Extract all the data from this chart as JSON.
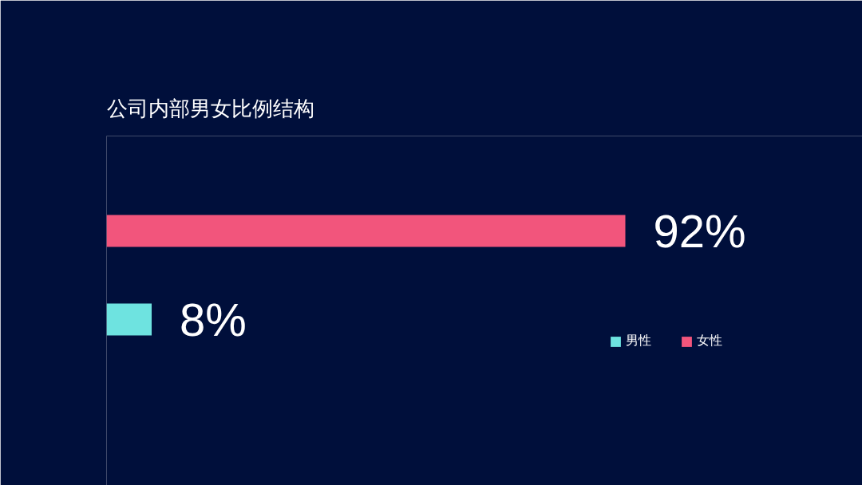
{
  "chart_data": {
    "type": "bar",
    "orientation": "horizontal",
    "stacked": true,
    "title": "公司内部男女比例结构",
    "categories": [
      null,
      null
    ],
    "series": [
      {
        "name": "男性",
        "color": "#6ee3e0",
        "values": [
          null,
          8
        ],
        "value_labels": [
          null,
          "8%"
        ]
      },
      {
        "name": "女性",
        "color": "#f2557c",
        "values": [
          92,
          null
        ],
        "value_labels": [
          "92%",
          null
        ]
      }
    ],
    "legend": "bottom right",
    "grid": false,
    "tick_labels": false
  }
}
